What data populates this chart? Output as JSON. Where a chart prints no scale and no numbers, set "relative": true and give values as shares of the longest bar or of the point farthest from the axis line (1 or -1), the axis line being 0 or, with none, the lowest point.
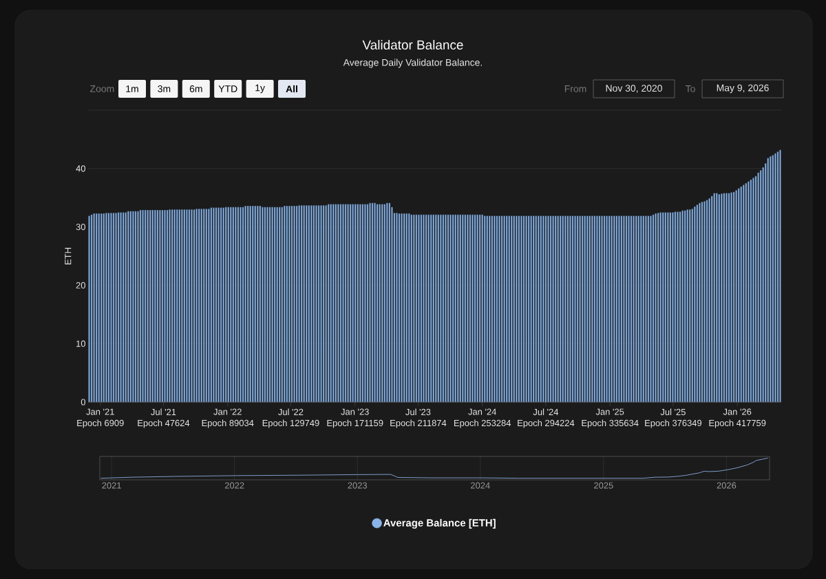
{
  "chart_data": [
    {
      "type": "bar",
      "title": "Validator Balance",
      "subtitle": "Average Daily Validator Balance.",
      "ylabel": "ETH",
      "x": [
        "2020-11-30",
        "2020-12-07",
        "2020-12-14",
        "2020-12-21",
        "2020-12-28",
        "2021-01-04",
        "2021-01-11",
        "2021-01-18",
        "2021-01-25",
        "2021-02-01",
        "2021-02-08",
        "2021-02-15",
        "2021-02-22",
        "2021-03-01",
        "2021-03-08",
        "2021-03-15",
        "2021-03-22",
        "2021-03-29",
        "2021-04-05",
        "2021-04-12",
        "2021-04-19",
        "2021-04-26",
        "2021-05-03",
        "2021-05-10",
        "2021-05-17",
        "2021-05-24",
        "2021-05-31",
        "2021-06-07",
        "2021-06-14",
        "2021-06-21",
        "2021-06-28",
        "2021-07-05",
        "2021-07-12",
        "2021-07-19",
        "2021-07-26",
        "2021-08-02",
        "2021-08-09",
        "2021-08-16",
        "2021-08-23",
        "2021-08-30",
        "2021-09-06",
        "2021-09-13",
        "2021-09-20",
        "2021-09-27",
        "2021-10-04",
        "2021-10-11",
        "2021-10-18",
        "2021-10-25",
        "2021-11-01",
        "2021-11-08",
        "2021-11-15",
        "2021-11-22",
        "2021-11-29",
        "2021-12-06",
        "2021-12-13",
        "2021-12-20",
        "2021-12-27",
        "2022-01-03",
        "2022-01-10",
        "2022-01-17",
        "2022-01-24",
        "2022-01-31",
        "2022-02-07",
        "2022-02-14",
        "2022-02-21",
        "2022-02-28",
        "2022-03-07",
        "2022-03-14",
        "2022-03-21",
        "2022-03-28",
        "2022-04-04",
        "2022-04-11",
        "2022-04-18",
        "2022-04-25",
        "2022-05-02",
        "2022-05-09",
        "2022-05-16",
        "2022-05-23",
        "2022-05-30",
        "2022-06-06",
        "2022-06-13",
        "2022-06-20",
        "2022-06-27",
        "2022-07-04",
        "2022-07-11",
        "2022-07-18",
        "2022-07-25",
        "2022-08-01",
        "2022-08-08",
        "2022-08-15",
        "2022-08-22",
        "2022-08-29",
        "2022-09-05",
        "2022-09-12",
        "2022-09-19",
        "2022-09-26",
        "2022-10-03",
        "2022-10-10",
        "2022-10-17",
        "2022-10-24",
        "2022-10-31",
        "2022-11-07",
        "2022-11-14",
        "2022-11-21",
        "2022-11-28",
        "2022-12-05",
        "2022-12-12",
        "2022-12-19",
        "2022-12-26",
        "2023-01-02",
        "2023-01-09",
        "2023-01-16",
        "2023-01-23",
        "2023-01-30",
        "2023-02-06",
        "2023-02-13",
        "2023-02-20",
        "2023-02-27",
        "2023-03-06",
        "2023-03-13",
        "2023-03-20",
        "2023-03-27",
        "2023-04-03",
        "2023-04-10",
        "2023-04-17",
        "2023-04-24",
        "2023-05-01",
        "2023-05-08",
        "2023-05-15",
        "2023-05-22",
        "2023-05-29",
        "2023-06-05",
        "2023-06-12",
        "2023-06-19",
        "2023-06-26",
        "2023-07-03",
        "2023-07-10",
        "2023-07-17",
        "2023-07-24",
        "2023-07-31",
        "2023-08-07",
        "2023-08-14",
        "2023-08-21",
        "2023-08-28",
        "2023-09-04",
        "2023-09-11",
        "2023-09-18",
        "2023-09-25",
        "2023-10-02",
        "2023-10-09",
        "2023-10-16",
        "2023-10-23",
        "2023-10-30",
        "2023-11-06",
        "2023-11-13",
        "2023-11-20",
        "2023-11-27",
        "2023-12-04",
        "2023-12-11",
        "2023-12-18",
        "2023-12-25",
        "2024-01-01",
        "2024-01-08",
        "2024-01-15",
        "2024-01-22",
        "2024-01-29",
        "2024-02-05",
        "2024-02-12",
        "2024-02-19",
        "2024-02-26",
        "2024-03-04",
        "2024-03-11",
        "2024-03-18",
        "2024-03-25",
        "2024-04-01",
        "2024-04-08",
        "2024-04-15",
        "2024-04-22",
        "2024-04-29",
        "2024-05-06",
        "2024-05-13",
        "2024-05-20",
        "2024-05-27",
        "2024-06-03",
        "2024-06-10",
        "2024-06-17",
        "2024-06-24",
        "2024-07-01",
        "2024-07-08",
        "2024-07-15",
        "2024-07-22",
        "2024-07-29",
        "2024-08-05",
        "2024-08-12",
        "2024-08-19",
        "2024-08-26",
        "2024-09-02",
        "2024-09-09",
        "2024-09-16",
        "2024-09-23",
        "2024-09-30",
        "2024-10-07",
        "2024-10-14",
        "2024-10-21",
        "2024-10-28",
        "2024-11-04",
        "2024-11-11",
        "2024-11-18",
        "2024-11-25",
        "2024-12-02",
        "2024-12-09",
        "2024-12-16",
        "2024-12-23",
        "2024-12-30",
        "2025-01-06",
        "2025-01-13",
        "2025-01-20",
        "2025-01-27",
        "2025-02-03",
        "2025-02-10",
        "2025-02-17",
        "2025-02-24",
        "2025-03-03",
        "2025-03-10",
        "2025-03-17",
        "2025-03-24",
        "2025-03-31",
        "2025-04-07",
        "2025-04-14",
        "2025-04-21",
        "2025-04-28",
        "2025-05-05",
        "2025-05-12",
        "2025-05-19",
        "2025-05-26",
        "2025-06-02",
        "2025-06-09",
        "2025-06-16",
        "2025-06-23",
        "2025-06-30",
        "2025-07-07",
        "2025-07-14",
        "2025-07-21",
        "2025-07-28",
        "2025-08-04",
        "2025-08-11",
        "2025-08-18",
        "2025-08-25",
        "2025-09-01",
        "2025-09-08",
        "2025-09-15",
        "2025-09-22",
        "2025-09-29",
        "2025-10-06",
        "2025-10-13",
        "2025-10-20",
        "2025-10-27",
        "2025-11-03",
        "2025-11-10",
        "2025-11-17",
        "2025-11-24",
        "2025-12-01",
        "2025-12-08",
        "2025-12-15",
        "2025-12-22",
        "2025-12-29",
        "2026-01-05",
        "2026-01-12",
        "2026-01-19",
        "2026-01-26",
        "2026-02-02",
        "2026-02-09",
        "2026-02-16",
        "2026-02-23",
        "2026-03-02",
        "2026-03-09",
        "2026-03-16",
        "2026-03-23",
        "2026-03-30",
        "2026-04-06",
        "2026-04-13",
        "2026-04-20",
        "2026-04-27",
        "2026-05-04"
      ],
      "series": [
        {
          "name": "Average Balance [ETH]",
          "color": "#8ab4e8",
          "values": [
            31.9,
            32.1,
            32.3,
            32.3,
            32.3,
            32.3,
            32.3,
            32.4,
            32.4,
            32.4,
            32.4,
            32.4,
            32.5,
            32.5,
            32.5,
            32.5,
            32.7,
            32.7,
            32.7,
            32.7,
            32.7,
            32.9,
            32.9,
            32.9,
            32.9,
            32.9,
            32.9,
            32.9,
            32.9,
            32.9,
            32.9,
            32.9,
            32.9,
            33.0,
            33.0,
            33.0,
            33.0,
            33.0,
            33.0,
            33.0,
            33.0,
            33.0,
            33.0,
            33.0,
            33.1,
            33.1,
            33.1,
            33.1,
            33.1,
            33.1,
            33.3,
            33.3,
            33.3,
            33.3,
            33.3,
            33.3,
            33.4,
            33.4,
            33.4,
            33.4,
            33.4,
            33.4,
            33.4,
            33.4,
            33.6,
            33.6,
            33.6,
            33.6,
            33.6,
            33.6,
            33.6,
            33.4,
            33.4,
            33.4,
            33.4,
            33.4,
            33.4,
            33.4,
            33.4,
            33.4,
            33.6,
            33.6,
            33.6,
            33.6,
            33.6,
            33.6,
            33.7,
            33.7,
            33.7,
            33.7,
            33.7,
            33.7,
            33.7,
            33.7,
            33.7,
            33.7,
            33.7,
            33.7,
            33.9,
            33.9,
            33.9,
            33.9,
            33.9,
            33.9,
            33.9,
            33.9,
            33.9,
            33.9,
            33.9,
            33.9,
            33.9,
            33.9,
            33.9,
            33.9,
            33.9,
            34.1,
            34.1,
            34.1,
            33.9,
            33.9,
            33.9,
            33.9,
            34.1,
            34.1,
            33.4,
            32.4,
            32.4,
            32.3,
            32.3,
            32.3,
            32.3,
            32.3,
            32.1,
            32.1,
            32.1,
            32.1,
            32.1,
            32.1,
            32.1,
            32.1,
            32.1,
            32.1,
            32.1,
            32.1,
            32.1,
            32.1,
            32.1,
            32.1,
            32.1,
            32.1,
            32.1,
            32.1,
            32.1,
            32.1,
            32.1,
            32.1,
            32.1,
            32.1,
            32.1,
            32.1,
            32.1,
            32.1,
            31.9,
            31.9,
            31.9,
            31.9,
            31.9,
            31.9,
            31.9,
            31.9,
            31.9,
            31.9,
            31.9,
            31.9,
            31.9,
            31.9,
            31.9,
            31.9,
            31.9,
            31.9,
            31.9,
            31.9,
            31.9,
            31.9,
            31.9,
            31.9,
            31.9,
            31.9,
            31.9,
            31.9,
            31.9,
            31.9,
            31.9,
            31.9,
            31.9,
            31.9,
            31.9,
            31.9,
            31.9,
            31.9,
            31.9,
            31.9,
            31.9,
            31.9,
            31.9,
            31.9,
            31.9,
            31.9,
            31.9,
            31.9,
            31.9,
            31.9,
            31.9,
            31.9,
            31.9,
            31.9,
            31.9,
            31.9,
            31.9,
            31.9,
            31.9,
            31.9,
            31.9,
            31.9,
            31.9,
            31.9,
            31.9,
            31.9,
            31.9,
            31.9,
            31.9,
            32.1,
            32.3,
            32.4,
            32.5,
            32.5,
            32.5,
            32.5,
            32.5,
            32.5,
            32.6,
            32.6,
            32.6,
            32.8,
            32.8,
            33.0,
            33.0,
            33.1,
            33.5,
            33.8,
            34.1,
            34.3,
            34.4,
            34.6,
            34.9,
            35.3,
            35.8,
            35.8,
            35.6,
            35.7,
            35.8,
            35.8,
            35.8,
            35.9,
            36.0,
            36.3,
            36.6,
            36.9,
            37.2,
            37.5,
            37.8,
            38.1,
            38.4,
            38.7,
            39.3,
            39.7,
            40.2,
            40.9,
            41.8,
            42.1,
            42.3,
            42.6,
            42.9,
            43.2
          ]
        }
      ],
      "xlim": [
        "2020-11-27",
        "2026-05-07"
      ],
      "ylim": [
        0,
        50
      ],
      "xticks": [
        {
          "value": "2021-01-01",
          "label": "Jan '21"
        },
        {
          "value": "2021-07-01",
          "label": "Jul '21"
        },
        {
          "value": "2022-01-01",
          "label": "Jan '22"
        },
        {
          "value": "2022-07-01",
          "label": "Jul '22"
        },
        {
          "value": "2023-01-01",
          "label": "Jan '23"
        },
        {
          "value": "2023-07-01",
          "label": "Jul '23"
        },
        {
          "value": "2024-01-01",
          "label": "Jan '24"
        },
        {
          "value": "2024-07-01",
          "label": "Jul '24"
        },
        {
          "value": "2025-01-01",
          "label": "Jan '25"
        },
        {
          "value": "2025-07-01",
          "label": "Jul '25"
        },
        {
          "value": "2026-01-01",
          "label": "Jan '26"
        }
      ],
      "x2lim": [
        "2020-11-27",
        "2026-05-07"
      ],
      "x2ticks": [
        {
          "value": "2021-01-01",
          "label": "Epoch 6909"
        },
        {
          "value": "2021-07-01",
          "label": "Epoch 47624"
        },
        {
          "value": "2022-01-01",
          "label": "Epoch 89034"
        },
        {
          "value": "2022-07-01",
          "label": "Epoch 129749"
        },
        {
          "value": "2023-01-01",
          "label": "Epoch 171159"
        },
        {
          "value": "2023-07-01",
          "label": "Epoch 211874"
        },
        {
          "value": "2024-01-01",
          "label": "Epoch 253284"
        },
        {
          "value": "2024-07-01",
          "label": "Epoch 294224"
        },
        {
          "value": "2025-01-01",
          "label": "Epoch 335634"
        },
        {
          "value": "2025-07-01",
          "label": "Epoch 376349"
        },
        {
          "value": "2026-01-01",
          "label": "Epoch 417759"
        }
      ],
      "yticks": [
        0,
        10,
        20,
        30,
        40,
        {
          "value": 50,
          "label": null
        }
      ],
      "grid": "y",
      "legend": "bottom",
      "annotations": [
        "Zoom",
        "1m",
        "3m",
        "6m",
        "YTD",
        "1y",
        "All",
        "From",
        "Nov 30, 2020",
        "To",
        "May 9, 2026"
      ]
    },
    {
      "type": "line",
      "relative": true,
      "color": "#7d9cc8",
      "x": [
        "2020-11-30",
        "2021-03-01",
        "2021-07-05",
        "2022-01-03",
        "2022-07-04",
        "2023-01-02",
        "2023-04-10",
        "2023-05-01",
        "2023-08-07",
        "2024-01-01",
        "2024-04-22",
        "2025-04-28",
        "2025-06-02",
        "2025-07-14",
        "2025-08-11",
        "2025-09-01",
        "2025-10-13",
        "2025-10-27",
        "2025-11-10",
        "2025-12-08",
        "2026-01-05",
        "2026-02-02",
        "2026-03-02",
        "2026-03-23",
        "2026-03-30",
        "2026-04-20",
        "2026-05-04"
      ],
      "values": [
        0.0,
        0.05,
        0.09,
        0.13,
        0.15,
        0.18,
        0.19,
        0.04,
        0.02,
        0.02,
        0.0,
        0.0,
        0.05,
        0.06,
        0.1,
        0.14,
        0.27,
        0.35,
        0.33,
        0.35,
        0.42,
        0.52,
        0.65,
        0.8,
        0.88,
        0.95,
        1.0
      ],
      "xlim": [
        "2020-11-27",
        "2026-05-09"
      ],
      "xticks": [
        {
          "value": "2021-01-01",
          "label": "2021"
        },
        {
          "value": "2022-01-01",
          "label": "2022"
        },
        {
          "value": "2023-01-01",
          "label": "2023"
        },
        {
          "value": "2024-01-01",
          "label": "2024"
        },
        {
          "value": "2025-01-01",
          "label": "2025"
        },
        {
          "value": "2026-01-01",
          "label": "2026"
        }
      ],
      "grid": "x",
      "tick_labels": "x"
    }
  ]
}
